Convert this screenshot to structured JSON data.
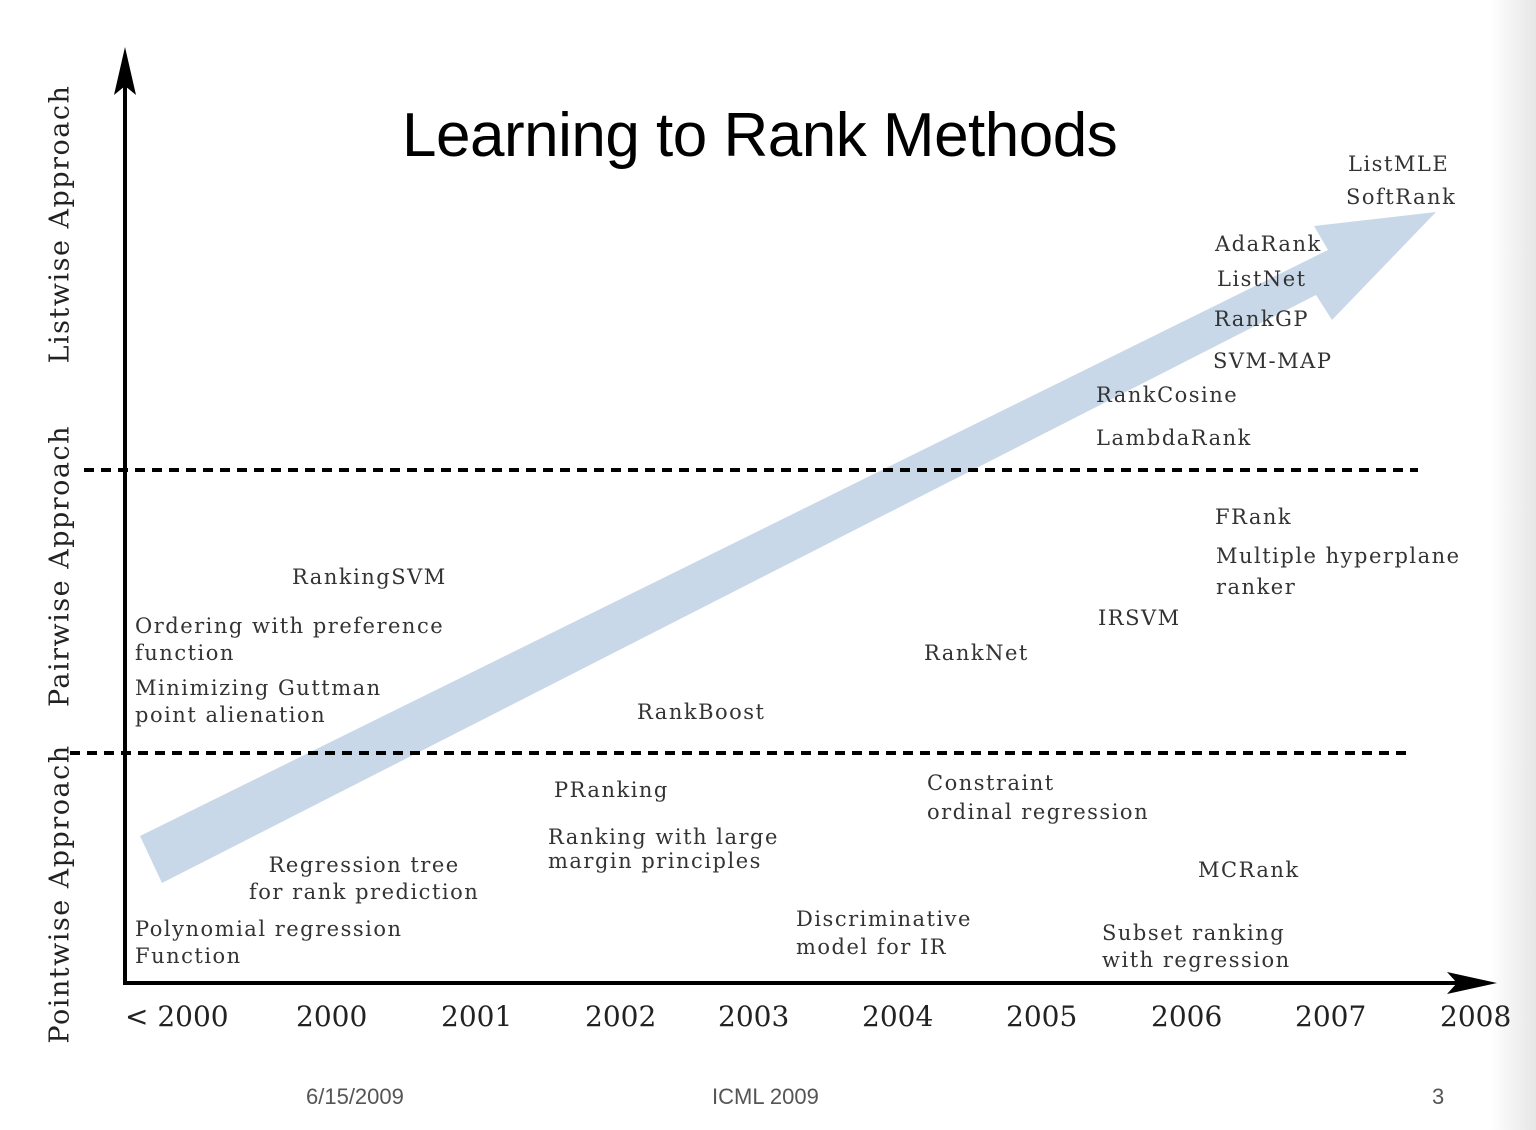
{
  "title": "Learning to Rank Methods",
  "colors": {
    "arrow": "#c9d8e9",
    "axis": "#000000"
  },
  "axis_labels": {
    "pointwise": "Pointwise Approach",
    "pairwise": "Pairwise Approach",
    "listwise": "Listwise Approach"
  },
  "x_ticks": [
    "< 2000",
    "2000",
    "2001",
    "2002",
    "2003",
    "2004",
    "2005",
    "2006",
    "2007",
    "2008"
  ],
  "methods": {
    "listmle": "ListMLE",
    "softrank": "SoftRank",
    "adarank": "AdaRank",
    "listnet": "ListNet",
    "rankgp": "RankGP",
    "svmmap": "SVM-MAP",
    "rankcosine": "RankCosine",
    "lambdarank": "LambdaRank",
    "frank": "FRank",
    "multiple_hyperplane": "Multiple hyperplane\nranker",
    "rankingsvm": "RankingSVM",
    "irsvm": "IRSVM",
    "ordering": "Ordering with preference\nfunction",
    "ranknet": "RankNet",
    "guttman": "Minimizing Guttman\npoint alienation",
    "rankboost": "RankBoost",
    "constraint": "Constraint\nordinal regression",
    "pranking": "PRanking",
    "large_margin": "Ranking with large\nmargin principles",
    "regression_tree": "Regression tree\nfor rank prediction",
    "mcrank": "MCRank",
    "discriminative": "Discriminative\nmodel for IR",
    "polynomial": "Polynomial regression\nFunction",
    "subset": "Subset ranking\nwith regression"
  },
  "footer": {
    "date": "6/15/2009",
    "venue": "ICML 2009",
    "page": "3"
  }
}
